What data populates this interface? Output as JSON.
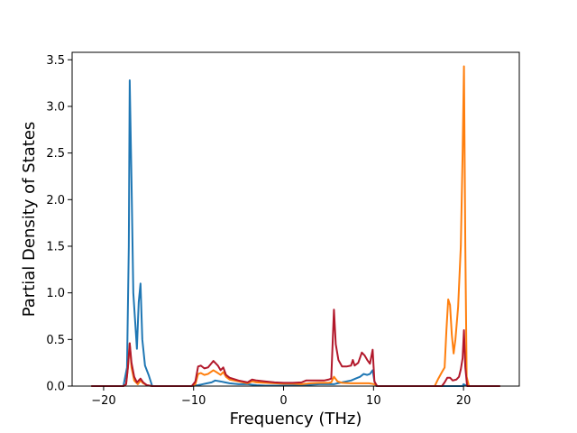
{
  "chart_data": {
    "type": "line",
    "title": "",
    "xlabel": "Frequency (THz)",
    "ylabel": "Partial Density of States",
    "xlim": [
      -23.5,
      26.2
    ],
    "ylim": [
      0,
      3.58
    ],
    "xticks": [
      -20,
      -10,
      0,
      10,
      20
    ],
    "yticks": [
      0.0,
      0.5,
      1.0,
      1.5,
      2.0,
      2.5,
      3.0,
      3.5
    ],
    "xtick_labels": [
      "−20",
      "−10",
      "0",
      "10",
      "20"
    ],
    "ytick_labels": [
      "0.0",
      "0.5",
      "1.0",
      "1.5",
      "2.0",
      "2.5",
      "3.0",
      "3.5"
    ],
    "grid": false,
    "legend": "none",
    "series": [
      {
        "color": "#1f77b4",
        "points": [
          [
            -21.3,
            0
          ],
          [
            -17.8,
            0
          ],
          [
            -17.4,
            0.2
          ],
          [
            -17.2,
            1.5
          ],
          [
            -17.1,
            3.28
          ],
          [
            -16.9,
            2.2
          ],
          [
            -16.7,
            1.0
          ],
          [
            -16.3,
            0.4
          ],
          [
            -16.1,
            0.9
          ],
          [
            -15.9,
            1.1
          ],
          [
            -15.7,
            0.5
          ],
          [
            -15.4,
            0.22
          ],
          [
            -15.0,
            0.12
          ],
          [
            -14.6,
            0
          ],
          [
            -10.2,
            0
          ],
          [
            -9.5,
            0.01
          ],
          [
            -9.0,
            0.02
          ],
          [
            -8.5,
            0.03
          ],
          [
            -8.0,
            0.04
          ],
          [
            -7.6,
            0.06
          ],
          [
            -7.0,
            0.05
          ],
          [
            -6.5,
            0.04
          ],
          [
            -6.0,
            0.03
          ],
          [
            -5.0,
            0.02
          ],
          [
            -4.0,
            0.02
          ],
          [
            -3.0,
            0.01
          ],
          [
            -2.0,
            0.005
          ],
          [
            0,
            0.005
          ],
          [
            2.0,
            0.01
          ],
          [
            3.0,
            0.015
          ],
          [
            4.0,
            0.02
          ],
          [
            5.0,
            0.02
          ],
          [
            5.6,
            0.02
          ],
          [
            6.0,
            0.03
          ],
          [
            6.5,
            0.04
          ],
          [
            7.0,
            0.05
          ],
          [
            7.5,
            0.06
          ],
          [
            8.0,
            0.08
          ],
          [
            8.5,
            0.1
          ],
          [
            8.9,
            0.13
          ],
          [
            9.3,
            0.12
          ],
          [
            9.6,
            0.13
          ],
          [
            9.9,
            0.17
          ],
          [
            10.1,
            0.05
          ],
          [
            10.3,
            0
          ],
          [
            18,
            0
          ],
          [
            19.9,
            0
          ],
          [
            20.0,
            0.02
          ],
          [
            20.2,
            0.01
          ],
          [
            20.5,
            0
          ],
          [
            24,
            0
          ]
        ]
      },
      {
        "color": "#ff7f0e",
        "points": [
          [
            -21.3,
            0
          ],
          [
            -17.8,
            0
          ],
          [
            -17.5,
            0.02
          ],
          [
            -17.3,
            0.2
          ],
          [
            -17.1,
            0.46
          ],
          [
            -16.9,
            0.2
          ],
          [
            -16.6,
            0.06
          ],
          [
            -16.2,
            0.02
          ],
          [
            -15.9,
            0.06
          ],
          [
            -15.6,
            0.03
          ],
          [
            -15.2,
            0.01
          ],
          [
            -14.6,
            0
          ],
          [
            -10.2,
            0
          ],
          [
            -9.8,
            0.02
          ],
          [
            -9.5,
            0.13
          ],
          [
            -9.2,
            0.14
          ],
          [
            -8.8,
            0.12
          ],
          [
            -8.4,
            0.13
          ],
          [
            -7.8,
            0.17
          ],
          [
            -7.3,
            0.14
          ],
          [
            -7.0,
            0.12
          ],
          [
            -6.7,
            0.15
          ],
          [
            -6.4,
            0.1
          ],
          [
            -6.0,
            0.07
          ],
          [
            -5.0,
            0.05
          ],
          [
            -4.0,
            0.03
          ],
          [
            -3.5,
            0.05
          ],
          [
            -3.0,
            0.04
          ],
          [
            -2.0,
            0.035
          ],
          [
            -1.0,
            0.03
          ],
          [
            0,
            0.025
          ],
          [
            1.0,
            0.025
          ],
          [
            2.0,
            0.02
          ],
          [
            3.0,
            0.03
          ],
          [
            4.0,
            0.035
          ],
          [
            5.0,
            0.035
          ],
          [
            5.3,
            0.04
          ],
          [
            5.6,
            0.1
          ],
          [
            6.0,
            0.05
          ],
          [
            6.5,
            0.035
          ],
          [
            7.5,
            0.03
          ],
          [
            8.5,
            0.03
          ],
          [
            9.5,
            0.03
          ],
          [
            10.1,
            0.02
          ],
          [
            10.4,
            0
          ],
          [
            16.8,
            0
          ],
          [
            17.2,
            0.08
          ],
          [
            17.6,
            0.15
          ],
          [
            17.9,
            0.2
          ],
          [
            18.1,
            0.6
          ],
          [
            18.3,
            0.93
          ],
          [
            18.5,
            0.87
          ],
          [
            18.7,
            0.55
          ],
          [
            18.9,
            0.35
          ],
          [
            19.1,
            0.5
          ],
          [
            19.4,
            0.85
          ],
          [
            19.7,
            1.5
          ],
          [
            19.9,
            2.5
          ],
          [
            20.05,
            3.43
          ],
          [
            20.2,
            1.5
          ],
          [
            20.35,
            0.1
          ],
          [
            20.6,
            0
          ],
          [
            24,
            0
          ]
        ]
      },
      {
        "color": "#b2182b",
        "points": [
          [
            -21.3,
            0
          ],
          [
            -17.8,
            0
          ],
          [
            -17.5,
            0.02
          ],
          [
            -17.3,
            0.2
          ],
          [
            -17.1,
            0.46
          ],
          [
            -16.9,
            0.25
          ],
          [
            -16.6,
            0.1
          ],
          [
            -16.3,
            0.04
          ],
          [
            -15.9,
            0.08
          ],
          [
            -15.6,
            0.04
          ],
          [
            -15.2,
            0.01
          ],
          [
            -14.6,
            0
          ],
          [
            -10.2,
            0
          ],
          [
            -9.8,
            0.05
          ],
          [
            -9.5,
            0.21
          ],
          [
            -9.2,
            0.22
          ],
          [
            -8.8,
            0.19
          ],
          [
            -8.4,
            0.2
          ],
          [
            -7.8,
            0.27
          ],
          [
            -7.3,
            0.22
          ],
          [
            -7.0,
            0.17
          ],
          [
            -6.7,
            0.2
          ],
          [
            -6.4,
            0.12
          ],
          [
            -6.0,
            0.09
          ],
          [
            -5.0,
            0.06
          ],
          [
            -4.0,
            0.04
          ],
          [
            -3.5,
            0.07
          ],
          [
            -3.0,
            0.06
          ],
          [
            -2.0,
            0.05
          ],
          [
            -1.0,
            0.04
          ],
          [
            0,
            0.035
          ],
          [
            1.0,
            0.035
          ],
          [
            2.0,
            0.04
          ],
          [
            2.5,
            0.06
          ],
          [
            3.5,
            0.06
          ],
          [
            4.5,
            0.06
          ],
          [
            5.0,
            0.07
          ],
          [
            5.3,
            0.08
          ],
          [
            5.6,
            0.82
          ],
          [
            5.8,
            0.45
          ],
          [
            6.1,
            0.28
          ],
          [
            6.5,
            0.21
          ],
          [
            7.0,
            0.21
          ],
          [
            7.5,
            0.22
          ],
          [
            7.7,
            0.28
          ],
          [
            7.9,
            0.22
          ],
          [
            8.3,
            0.25
          ],
          [
            8.7,
            0.36
          ],
          [
            9.0,
            0.33
          ],
          [
            9.3,
            0.28
          ],
          [
            9.6,
            0.24
          ],
          [
            9.9,
            0.39
          ],
          [
            10.1,
            0.05
          ],
          [
            10.4,
            0
          ],
          [
            17.6,
            0
          ],
          [
            17.9,
            0.04
          ],
          [
            18.2,
            0.09
          ],
          [
            18.5,
            0.09
          ],
          [
            18.8,
            0.06
          ],
          [
            19.2,
            0.07
          ],
          [
            19.5,
            0.1
          ],
          [
            19.7,
            0.18
          ],
          [
            19.9,
            0.3
          ],
          [
            20.05,
            0.6
          ],
          [
            20.2,
            0.2
          ],
          [
            20.4,
            0
          ],
          [
            24,
            0
          ]
        ]
      }
    ]
  }
}
